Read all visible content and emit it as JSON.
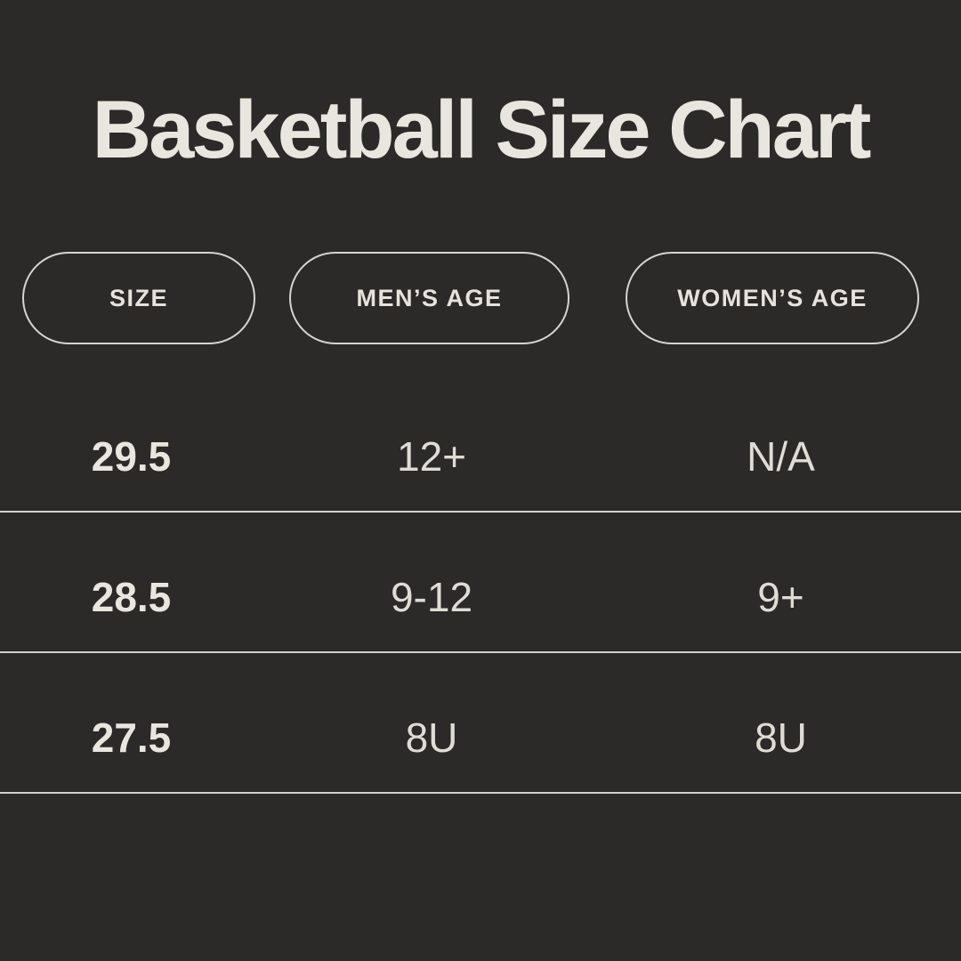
{
  "page": {
    "background_color": "#2b2a29",
    "text_color": "#e9e6df",
    "divider_color": "#d2d0cb",
    "pill_border_color": "#d6d4cf"
  },
  "title": "Basketball Size Chart",
  "chart_data": {
    "type": "table",
    "title": "Basketball Size Chart",
    "columns": [
      "SIZE",
      "MEN’S AGE",
      "WOMEN’S AGE"
    ],
    "rows": [
      [
        "29.5",
        "12+",
        "N/A"
      ],
      [
        "28.5",
        "9-12",
        "9+"
      ],
      [
        "27.5",
        "8U",
        "8U"
      ]
    ],
    "layout": {
      "header_style": "outlined-pill",
      "row_dividers": true,
      "theme": "dark"
    }
  }
}
